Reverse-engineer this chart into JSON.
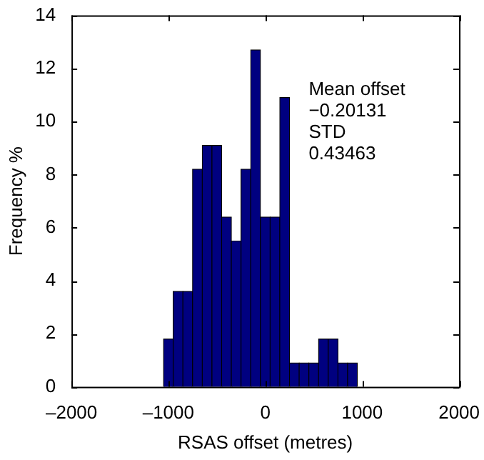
{
  "chart_data": {
    "type": "histogram",
    "xlabel": "RSAS offset (metres)",
    "ylabel": "Frequency %",
    "bins": [
      -1050,
      -950,
      -850,
      -750,
      -650,
      -550,
      -450,
      -350,
      -250,
      -150,
      -50,
      50,
      150,
      250,
      350,
      450,
      550,
      650,
      750,
      850,
      950
    ],
    "values": [
      1.8,
      3.6,
      3.6,
      8.2,
      9.1,
      9.1,
      6.4,
      5.5,
      8.2,
      12.7,
      6.4,
      6.4,
      10.9,
      0.9,
      0.9,
      0.9,
      1.8,
      1.8,
      0.9,
      0.9
    ],
    "color": "#000080",
    "xlim": [
      -2000,
      2000
    ],
    "xticks": [
      {
        "value": -2000,
        "label": "–2000"
      },
      {
        "value": -1000,
        "label": "–1000"
      },
      0,
      1000,
      2000
    ],
    "ylim": [
      0,
      14
    ],
    "yticks": [
      0,
      2,
      4,
      6,
      8,
      10,
      12,
      14
    ],
    "annotations": [
      "Mean offset",
      "−0.20131",
      "STD",
      "0.43463"
    ]
  }
}
